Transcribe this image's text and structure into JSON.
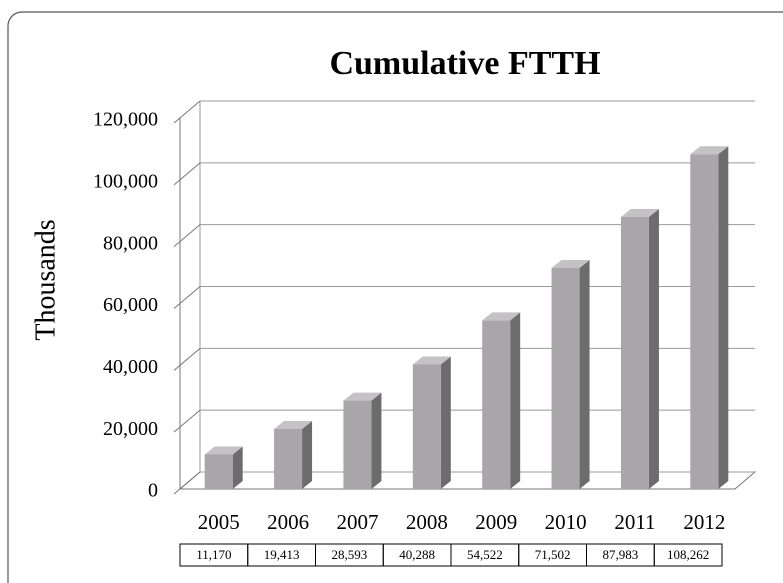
{
  "chart_data": {
    "type": "bar",
    "title": "Cumulative FTTH",
    "y_label": "Thousands",
    "categories": [
      "2005",
      "2006",
      "2007",
      "2008",
      "2009",
      "2010",
      "2011",
      "2012"
    ],
    "values": [
      11170,
      19413,
      28593,
      40288,
      54522,
      71502,
      87983,
      108262
    ],
    "value_labels": [
      "11,170",
      "19,413",
      "28,593",
      "40,288",
      "54,522",
      "71,502",
      "87,983",
      "108,262"
    ],
    "color": "#a8a6a8",
    "ylim": [
      0,
      120000
    ],
    "yticks": [
      0,
      {
        "value": 20000,
        "label": "20,000"
      },
      {
        "value": 40000,
        "label": "40,000"
      },
      {
        "value": 60000,
        "label": "60,000"
      },
      {
        "value": 80000,
        "label": "80,000"
      },
      {
        "value": 100000,
        "label": "100,000"
      },
      {
        "value": 120000,
        "label": "120,000"
      }
    ],
    "grid": true
  }
}
